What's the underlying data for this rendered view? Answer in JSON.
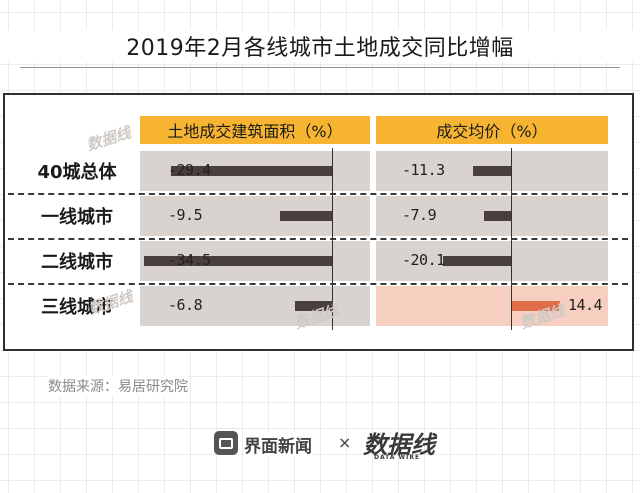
{
  "title": "2019年2月各线城市土地成交同比增幅",
  "source": "数据来源：易居研究院",
  "footer": {
    "brand1": "界面新闻",
    "separator": "×",
    "brand2": "数据线",
    "brand2_sub": "DATA WIRE"
  },
  "watermark": "数据线",
  "colors": {
    "header": "#f7b431",
    "negative_bar": "#4a3f3c",
    "positive_bar": "#e26d4a",
    "cell": "#d8d3cf",
    "cell_positive": "#f6cfc0"
  },
  "chart_data": {
    "type": "bar",
    "categories": [
      "40城总体",
      "一线城市",
      "二线城市",
      "三线城市"
    ],
    "series": [
      {
        "name": "土地成交建筑面积（%）",
        "values": [
          -29.4,
          -9.5,
          -34.5,
          -6.8
        ],
        "labels": [
          "-29.4",
          "-9.5",
          "-34.5",
          "-6.8"
        ]
      },
      {
        "name": "成交均价（%）",
        "values": [
          -11.3,
          -7.9,
          -20.1,
          14.4
        ],
        "labels": [
          "-11.3",
          "-7.9",
          "-20.1",
          "14.4"
        ]
      }
    ]
  }
}
